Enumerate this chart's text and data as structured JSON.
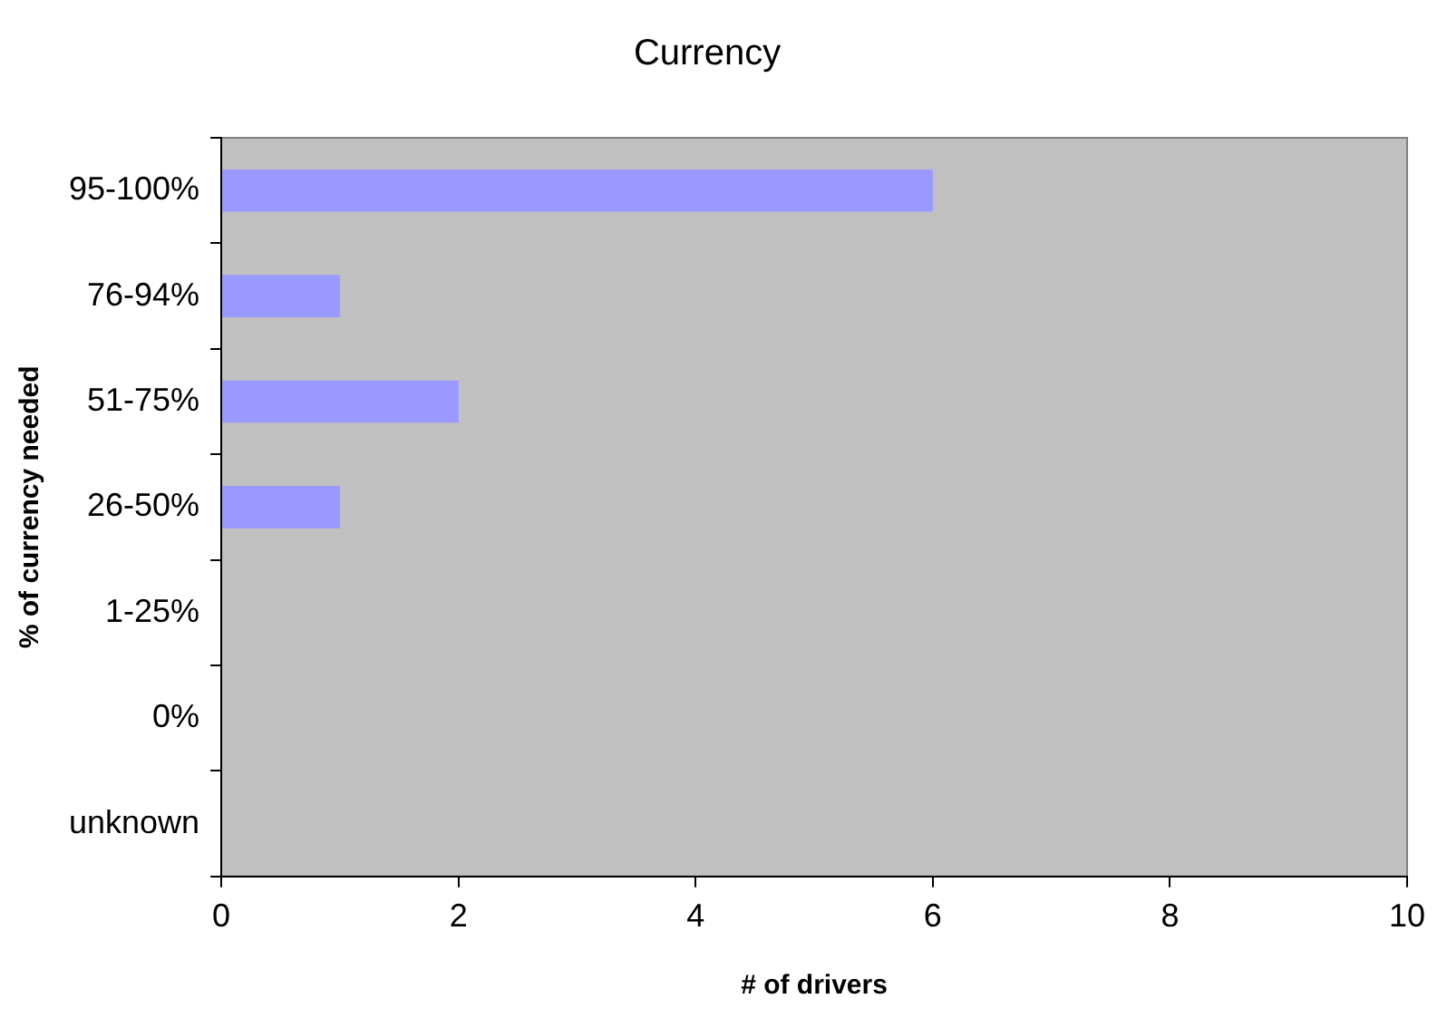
{
  "chart_data": {
    "type": "bar",
    "orientation": "horizontal",
    "title": "Currency",
    "xlabel": "# of drivers",
    "ylabel": "% of currency needed",
    "categories": [
      "95-100%",
      "76-94%",
      "51-75%",
      "26-50%",
      "1-25%",
      "0%",
      "unknown"
    ],
    "values": [
      6,
      1,
      2,
      1,
      0,
      0,
      0
    ],
    "color": "#9999ff",
    "xlim": [
      0,
      10
    ],
    "xticks": [
      0,
      2,
      4,
      6,
      8,
      10
    ],
    "grid": false,
    "legend": false
  }
}
